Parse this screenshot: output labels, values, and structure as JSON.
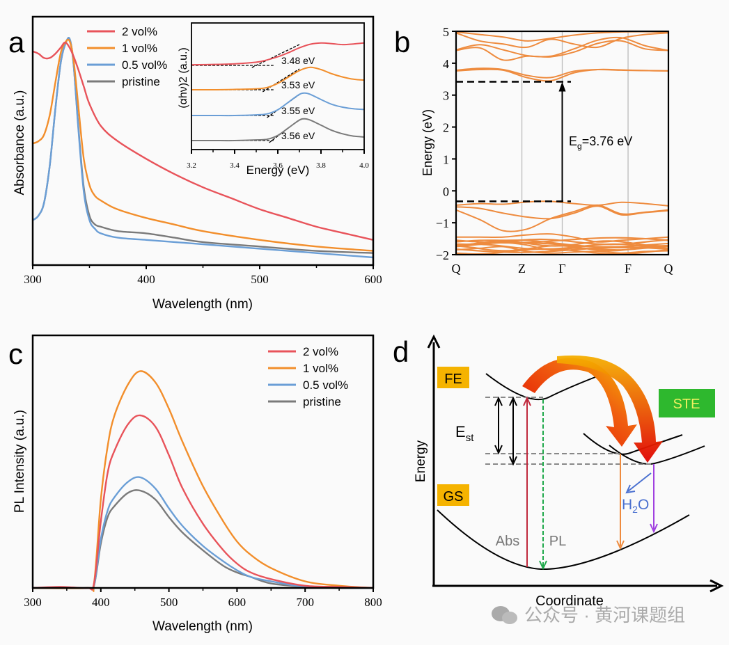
{
  "chart_data": [
    {
      "panel": "a",
      "type": "line",
      "xlabel": "Wavelength (nm)",
      "ylabel": "Absorbance (a.u.)",
      "xlim": [
        300,
        600
      ],
      "ylim": [
        0,
        1
      ],
      "xticks": [
        "300",
        "400",
        "500",
        "600"
      ],
      "legend": [
        "2 vol%",
        "1 vol%",
        "0.5 vol%",
        "pristine"
      ],
      "legend_position": "top-left",
      "series": [
        {
          "name": "2 vol%",
          "color": "#e8535a",
          "x": [
            300,
            305,
            310,
            315,
            320,
            325,
            328,
            331,
            335,
            340,
            345,
            350,
            360,
            375,
            400,
            425,
            450,
            475,
            500,
            525,
            550,
            575,
            600
          ],
          "values": [
            0.94,
            0.93,
            0.91,
            0.91,
            0.93,
            0.96,
            0.98,
            0.97,
            0.93,
            0.86,
            0.78,
            0.7,
            0.6,
            0.53,
            0.45,
            0.38,
            0.32,
            0.27,
            0.22,
            0.18,
            0.14,
            0.11,
            0.08
          ]
        },
        {
          "name": "1 vol%",
          "color": "#f28e2b",
          "x": [
            300,
            305,
            310,
            315,
            320,
            325,
            330,
            333,
            336,
            340,
            345,
            350,
            355,
            360,
            370,
            380,
            400,
            425,
            450,
            500,
            550,
            600
          ],
          "values": [
            0.52,
            0.53,
            0.56,
            0.65,
            0.8,
            0.94,
            0.99,
            0.98,
            0.9,
            0.7,
            0.45,
            0.33,
            0.28,
            0.26,
            0.23,
            0.21,
            0.18,
            0.15,
            0.12,
            0.08,
            0.05,
            0.03
          ]
        },
        {
          "name": "0.5 vol%",
          "color": "#6a9ed6",
          "x": [
            300,
            305,
            310,
            315,
            320,
            325,
            330,
            333,
            336,
            340,
            345,
            350,
            355,
            360,
            375,
            400,
            425,
            450,
            500,
            550,
            600
          ],
          "values": [
            0.17,
            0.19,
            0.25,
            0.42,
            0.68,
            0.9,
            0.99,
            0.99,
            0.88,
            0.6,
            0.3,
            0.17,
            0.13,
            0.11,
            0.09,
            0.08,
            0.07,
            0.06,
            0.04,
            0.02,
            0.0
          ]
        },
        {
          "name": "pristine",
          "color": "#7a7a7a",
          "x": [
            300,
            305,
            310,
            315,
            320,
            325,
            330,
            333,
            336,
            340,
            345,
            350,
            355,
            360,
            375,
            400,
            425,
            450,
            500,
            550,
            600
          ],
          "values": [
            0.17,
            0.19,
            0.25,
            0.42,
            0.68,
            0.9,
            0.99,
            0.99,
            0.88,
            0.61,
            0.32,
            0.19,
            0.15,
            0.14,
            0.12,
            0.11,
            0.09,
            0.07,
            0.05,
            0.03,
            0.02
          ]
        }
      ]
    },
    {
      "panel": "a-inset",
      "type": "line",
      "xlabel": "Energy (eV)",
      "ylabel": "(αhν)2 (a.u.)",
      "xlim": [
        3.2,
        4.0
      ],
      "xticks": [
        "3.2",
        "3.4",
        "3.6",
        "3.8",
        "4.0"
      ],
      "annotations": [
        "3.48 eV",
        "3.53 eV",
        "3.55 eV",
        "3.56 eV"
      ],
      "series": [
        {
          "name": "2 vol%",
          "color": "#e8535a",
          "x": [
            3.2,
            3.3,
            3.4,
            3.5,
            3.55,
            3.6,
            3.65,
            3.7,
            3.75,
            3.8,
            3.85,
            3.9,
            3.95,
            4.0
          ],
          "values": [
            0.02,
            0.03,
            0.05,
            0.1,
            0.17,
            0.27,
            0.4,
            0.55,
            0.66,
            0.7,
            0.68,
            0.65,
            0.67,
            0.7
          ],
          "bandgap": 3.48
        },
        {
          "name": "1 vol%",
          "color": "#f28e2b",
          "x": [
            3.2,
            3.3,
            3.4,
            3.5,
            3.55,
            3.6,
            3.65,
            3.7,
            3.75,
            3.8,
            3.85,
            3.9,
            3.95,
            4.0
          ],
          "values": [
            0.0,
            0.0,
            0.01,
            0.03,
            0.07,
            0.2,
            0.4,
            0.6,
            0.7,
            0.63,
            0.5,
            0.4,
            0.33,
            0.3
          ],
          "bandgap": 3.53
        },
        {
          "name": "0.5 vol%",
          "color": "#6a9ed6",
          "x": [
            3.2,
            3.3,
            3.4,
            3.5,
            3.55,
            3.6,
            3.65,
            3.7,
            3.725,
            3.75,
            3.8,
            3.85,
            3.9,
            3.95,
            4.0
          ],
          "values": [
            0.0,
            0.0,
            0.0,
            0.02,
            0.05,
            0.18,
            0.42,
            0.66,
            0.7,
            0.66,
            0.5,
            0.35,
            0.26,
            0.21,
            0.19
          ],
          "bandgap": 3.55
        },
        {
          "name": "pristine",
          "color": "#7a7a7a",
          "x": [
            3.2,
            3.3,
            3.4,
            3.5,
            3.55,
            3.6,
            3.65,
            3.7,
            3.725,
            3.75,
            3.8,
            3.85,
            3.9,
            3.95,
            4.0
          ],
          "values": [
            0.0,
            0.0,
            0.0,
            0.02,
            0.04,
            0.16,
            0.4,
            0.64,
            0.68,
            0.64,
            0.48,
            0.32,
            0.21,
            0.14,
            0.11
          ],
          "bandgap": 3.56
        }
      ]
    },
    {
      "panel": "b",
      "type": "line",
      "ylabel": "Energy (eV)",
      "ylim": [
        -2,
        5
      ],
      "yticks": [
        "−2",
        "−1",
        "0",
        "1",
        "2",
        "3",
        "4",
        "5"
      ],
      "kpoints": [
        {
          "label": "Q",
          "pos": 0
        },
        {
          "label": "Z",
          "pos": 0.31
        },
        {
          "label": "Γ",
          "pos": 0.5
        },
        {
          "label": "F",
          "pos": 0.81
        },
        {
          "label": "Q",
          "pos": 1
        }
      ],
      "annotation": {
        "text_main": "E",
        "text_sub": "g",
        "text_rest": "=3.76 eV"
      },
      "cbm": 3.42,
      "vbm": -0.33,
      "band_color": "#ee8b3e",
      "bands": [
        [
          3.78,
          3.84,
          3.8,
          3.62,
          3.55,
          3.75,
          3.8,
          3.78,
          3.77,
          3.76
        ],
        [
          3.76,
          3.8,
          3.78,
          3.55,
          3.45,
          3.7,
          3.8,
          3.79,
          3.77,
          3.76
        ],
        [
          4.4,
          4.48,
          4.1,
          4.22,
          4.2,
          4.35,
          4.62,
          4.7,
          4.45,
          4.4
        ],
        [
          4.42,
          4.58,
          4.42,
          4.24,
          4.22,
          4.45,
          4.72,
          4.8,
          4.55,
          4.4
        ],
        [
          4.95,
          4.7,
          4.6,
          4.5,
          4.75,
          4.6,
          4.5,
          4.78,
          4.9,
          4.95
        ],
        [
          4.98,
          4.9,
          4.82,
          4.7,
          4.78,
          4.88,
          4.95,
          4.98,
          4.99,
          4.97
        ],
        [
          -0.45,
          -0.4,
          -0.42,
          -0.35,
          -0.33,
          -0.4,
          -0.45,
          -0.36,
          -0.4,
          -0.47
        ],
        [
          -0.5,
          -0.55,
          -0.7,
          -0.82,
          -0.87,
          -0.7,
          -0.48,
          -0.75,
          -0.68,
          -0.62
        ],
        [
          -0.6,
          -0.9,
          -1.25,
          -1.2,
          -0.87,
          -0.65,
          -0.45,
          -0.72,
          -0.67,
          -0.6
        ],
        [
          -1.45,
          -1.45,
          -1.45,
          -1.38,
          -1.35,
          -1.45,
          -1.6,
          -1.55,
          -1.5,
          -1.45
        ],
        [
          -1.6,
          -1.55,
          -1.55,
          -1.55,
          -1.62,
          -1.7,
          -1.75,
          -1.75,
          -1.7,
          -1.65
        ],
        [
          -1.75,
          -1.68,
          -1.62,
          -1.7,
          -1.85,
          -1.8,
          -1.82,
          -1.85,
          -1.8,
          -1.75
        ],
        [
          -1.85,
          -1.8,
          -1.75,
          -1.9,
          -1.95,
          -1.92,
          -1.9,
          -1.95,
          -1.9,
          -1.88
        ]
      ]
    },
    {
      "panel": "c",
      "type": "line",
      "xlabel": "Wavelength (nm)",
      "ylabel": "PL Intensity (a.u.)",
      "xlim": [
        300,
        800
      ],
      "ylim": [
        0,
        1.0
      ],
      "xticks": [
        "300",
        "400",
        "500",
        "600",
        "700",
        "800"
      ],
      "legend": [
        "2 vol%",
        "1 vol%",
        "0.5 vol%",
        "pristine"
      ],
      "legend_position": "top-right",
      "series": [
        {
          "name": "2 vol%",
          "color": "#e8535a",
          "x": [
            300,
            340,
            380,
            390,
            400,
            410,
            420,
            440,
            458,
            480,
            500,
            520,
            550,
            580,
            600,
            620,
            650,
            700,
            750,
            800
          ],
          "values": [
            0,
            0.005,
            0,
            0.02,
            0.3,
            0.52,
            0.62,
            0.74,
            0.78,
            0.73,
            0.6,
            0.45,
            0.29,
            0.17,
            0.11,
            0.07,
            0.04,
            0.01,
            0.005,
            0
          ]
        },
        {
          "name": "1 vol%",
          "color": "#f28e2b",
          "x": [
            300,
            380,
            390,
            400,
            410,
            420,
            440,
            458,
            480,
            500,
            520,
            550,
            580,
            600,
            620,
            650,
            700,
            750,
            800
          ],
          "values": [
            0,
            0,
            0.02,
            0.4,
            0.64,
            0.78,
            0.92,
            0.98,
            0.93,
            0.81,
            0.66,
            0.46,
            0.3,
            0.21,
            0.15,
            0.09,
            0.03,
            0.01,
            0
          ]
        },
        {
          "name": "0.5 vol%",
          "color": "#6a9ed6",
          "x": [
            300,
            380,
            390,
            400,
            410,
            420,
            440,
            458,
            480,
            500,
            520,
            550,
            580,
            600,
            620,
            650,
            700,
            750,
            800
          ],
          "values": [
            0,
            0,
            0.01,
            0.22,
            0.35,
            0.41,
            0.48,
            0.5,
            0.45,
            0.36,
            0.28,
            0.19,
            0.12,
            0.08,
            0.05,
            0.03,
            0.005,
            0,
            0
          ]
        },
        {
          "name": "pristine",
          "color": "#7a7a7a",
          "x": [
            300,
            380,
            390,
            400,
            410,
            420,
            440,
            458,
            480,
            500,
            520,
            550,
            580,
            600,
            620,
            650,
            700,
            750,
            800
          ],
          "values": [
            0,
            0,
            0.01,
            0.2,
            0.32,
            0.37,
            0.43,
            0.44,
            0.4,
            0.32,
            0.25,
            0.17,
            0.1,
            0.07,
            0.05,
            0.02,
            0.005,
            0,
            0
          ]
        }
      ]
    }
  ],
  "panels": {
    "a": {
      "letter": "a",
      "inset_annotations": [
        "3.48 eV",
        "3.53 eV",
        "3.55 eV",
        "3.56 eV"
      ]
    },
    "b": {
      "letter": "b"
    },
    "c": {
      "letter": "c"
    },
    "d": {
      "letter": "d",
      "y_axis_label": "Energy",
      "x_axis_label": "Coordinate",
      "fe_label": "FE",
      "gs_label": "GS",
      "ste_label": "STE",
      "est_main": "E",
      "est_sub": "st",
      "abs_label": "Abs",
      "pl_label": "PL",
      "h2o_h": "H",
      "h2o_sub": "2",
      "h2o_o": "O",
      "fe_color": "#f5b300",
      "gs_color": "#f5b300",
      "ste_color": "#2eb82e",
      "ste_text_color": "#f0f060"
    }
  },
  "watermark": {
    "text": "公众号 · 黄河课题组"
  }
}
